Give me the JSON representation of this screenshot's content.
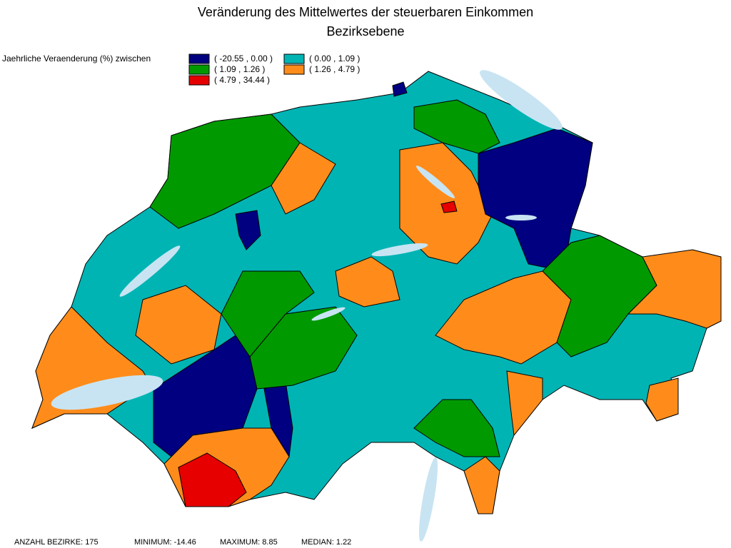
{
  "title": [
    "Veränderung des Mittelwertes der steuerbaren Einkommen",
    "Bezirksebene"
  ],
  "legend": {
    "label": "Jaehrliche Veraenderung (%) zwischen",
    "classes": [
      {
        "label": "( -20.55 , 0.00 )",
        "color": "#000080"
      },
      {
        "label": "( 0.00 , 1.09 )",
        "color": "#00b4b4"
      },
      {
        "label": "( 1.09 , 1.26 )",
        "color": "#009a00"
      },
      {
        "label": "( 1.26 , 4.79 )",
        "color": "#ff8c1a"
      },
      {
        "label": "( 4.79 , 34.44 )",
        "color": "#e60000"
      }
    ]
  },
  "footer": [
    "ANZAHL BEZIRKE: 175",
    "MINIMUM: -14.46",
    "MAXIMUM: 8.85",
    "MEDIAN: 1.22"
  ]
}
